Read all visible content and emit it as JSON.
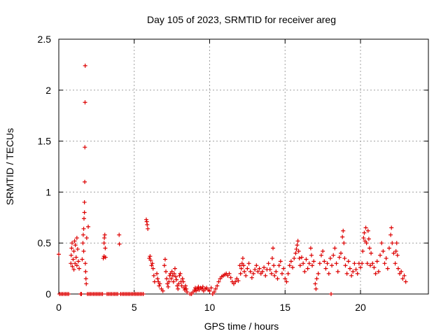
{
  "chart_data": {
    "type": "scatter",
    "title": "Day 105 of 2023, SRMTID for receiver areg",
    "xlabel": "GPS time / hours",
    "ylabel": "SRMTID / TECUs",
    "xlim": [
      0,
      24.5
    ],
    "ylim": [
      0,
      2.5
    ],
    "xticks": [
      0,
      5,
      10,
      15,
      20
    ],
    "xtick_labels": [
      "0",
      "5",
      "10",
      "15",
      "20"
    ],
    "yticks": [
      0,
      0.5,
      1,
      1.5,
      2,
      2.5
    ],
    "ytick_labels": [
      "0",
      "0.5",
      "1",
      "1.5",
      "2",
      "2.5"
    ],
    "grid": true,
    "marker": "+",
    "color": "#dd0000",
    "series": [
      {
        "name": "SRMTID",
        "points": [
          [
            0.0,
            0.39
          ],
          [
            0.05,
            0.0
          ],
          [
            0.15,
            0.0
          ],
          [
            0.25,
            0.0
          ],
          [
            0.35,
            0.0
          ],
          [
            0.45,
            0.0
          ],
          [
            0.55,
            0.0
          ],
          [
            0.65,
            0.0
          ],
          [
            0.8,
            0.3
          ],
          [
            0.82,
            0.38
          ],
          [
            0.85,
            0.45
          ],
          [
            0.88,
            0.5
          ],
          [
            0.9,
            0.27
          ],
          [
            0.95,
            0.34
          ],
          [
            1.0,
            0.42
          ],
          [
            1.0,
            0.24
          ],
          [
            1.05,
            0.52
          ],
          [
            1.08,
            0.3
          ],
          [
            1.1,
            0.48
          ],
          [
            1.15,
            0.36
          ],
          [
            1.2,
            0.55
          ],
          [
            1.2,
            0.28
          ],
          [
            1.25,
            0.44
          ],
          [
            1.3,
            0.32
          ],
          [
            1.35,
            0.25
          ],
          [
            1.45,
            0.0
          ],
          [
            1.5,
            0.0
          ],
          [
            1.55,
            0.34
          ],
          [
            1.6,
            0.5
          ],
          [
            1.62,
            0.58
          ],
          [
            1.65,
            0.64
          ],
          [
            1.65,
            0.42
          ],
          [
            1.67,
            0.74
          ],
          [
            1.7,
            0.8
          ],
          [
            1.7,
            0.9
          ],
          [
            1.72,
            1.1
          ],
          [
            1.73,
            1.44
          ],
          [
            1.74,
            1.88
          ],
          [
            1.75,
            2.24
          ],
          [
            1.76,
            0.3
          ],
          [
            1.78,
            0.22
          ],
          [
            1.8,
            0.15
          ],
          [
            1.82,
            0.1
          ],
          [
            1.85,
            0.55
          ],
          [
            1.95,
            0.66
          ],
          [
            1.9,
            0.0
          ],
          [
            2.0,
            0.0
          ],
          [
            2.1,
            0.0
          ],
          [
            2.2,
            0.0
          ],
          [
            2.3,
            0.0
          ],
          [
            2.4,
            0.0
          ],
          [
            2.5,
            0.0
          ],
          [
            2.6,
            0.0
          ],
          [
            2.7,
            0.0
          ],
          [
            2.8,
            0.0
          ],
          [
            2.9,
            0.0
          ],
          [
            2.95,
            0.35
          ],
          [
            3.0,
            0.37
          ],
          [
            3.0,
            0.5
          ],
          [
            3.02,
            0.55
          ],
          [
            3.05,
            0.58
          ],
          [
            3.08,
            0.45
          ],
          [
            3.1,
            0.36
          ],
          [
            3.2,
            0.0
          ],
          [
            3.3,
            0.0
          ],
          [
            3.4,
            0.0
          ],
          [
            3.5,
            0.0
          ],
          [
            3.6,
            0.0
          ],
          [
            3.7,
            0.0
          ],
          [
            3.8,
            0.0
          ],
          [
            3.9,
            0.0
          ],
          [
            4.0,
            0.58
          ],
          [
            4.02,
            0.49
          ],
          [
            4.1,
            0.0
          ],
          [
            4.2,
            0.0
          ],
          [
            4.3,
            0.0
          ],
          [
            4.4,
            0.0
          ],
          [
            4.5,
            0.0
          ],
          [
            4.6,
            0.0
          ],
          [
            4.7,
            0.0
          ],
          [
            4.8,
            0.0
          ],
          [
            4.9,
            0.0
          ],
          [
            5.0,
            0.0
          ],
          [
            5.1,
            0.0
          ],
          [
            5.2,
            0.0
          ],
          [
            5.3,
            0.0
          ],
          [
            5.4,
            0.0
          ],
          [
            5.5,
            0.0
          ],
          [
            5.6,
            0.0
          ],
          [
            5.8,
            0.73
          ],
          [
            5.83,
            0.71
          ],
          [
            5.86,
            0.68
          ],
          [
            5.9,
            0.64
          ],
          [
            6.0,
            0.35
          ],
          [
            6.05,
            0.37
          ],
          [
            6.1,
            0.33
          ],
          [
            6.15,
            0.28
          ],
          [
            6.2,
            0.3
          ],
          [
            6.25,
            0.25
          ],
          [
            6.3,
            0.18
          ],
          [
            6.35,
            0.12
          ],
          [
            6.5,
            0.2
          ],
          [
            6.55,
            0.15
          ],
          [
            6.6,
            0.12
          ],
          [
            6.65,
            0.08
          ],
          [
            6.7,
            0.1
          ],
          [
            6.8,
            0.05
          ],
          [
            6.9,
            0.03
          ],
          [
            7.0,
            0.28
          ],
          [
            7.05,
            0.34
          ],
          [
            7.1,
            0.22
          ],
          [
            7.15,
            0.15
          ],
          [
            7.2,
            0.1
          ],
          [
            7.25,
            0.07
          ],
          [
            7.3,
            0.12
          ],
          [
            7.35,
            0.18
          ],
          [
            7.4,
            0.2
          ],
          [
            7.45,
            0.15
          ],
          [
            7.5,
            0.22
          ],
          [
            7.55,
            0.18
          ],
          [
            7.6,
            0.12
          ],
          [
            7.65,
            0.2
          ],
          [
            7.7,
            0.25
          ],
          [
            7.75,
            0.17
          ],
          [
            7.8,
            0.14
          ],
          [
            7.85,
            0.08
          ],
          [
            7.9,
            0.05
          ],
          [
            7.95,
            0.1
          ],
          [
            8.0,
            0.18
          ],
          [
            8.05,
            0.2
          ],
          [
            8.1,
            0.12
          ],
          [
            8.15,
            0.08
          ],
          [
            8.2,
            0.15
          ],
          [
            8.25,
            0.12
          ],
          [
            8.3,
            0.06
          ],
          [
            8.35,
            0.04
          ],
          [
            8.4,
            0.08
          ],
          [
            8.45,
            0.05
          ],
          [
            8.5,
            0.02
          ],
          [
            8.7,
            0.0
          ],
          [
            8.8,
            0.0
          ],
          [
            8.9,
            0.02
          ],
          [
            9.0,
            0.04
          ],
          [
            9.05,
            0.06
          ],
          [
            9.1,
            0.03
          ],
          [
            9.2,
            0.05
          ],
          [
            9.25,
            0.07
          ],
          [
            9.3,
            0.04
          ],
          [
            9.4,
            0.06
          ],
          [
            9.5,
            0.05
          ],
          [
            9.55,
            0.07
          ],
          [
            9.6,
            0.03
          ],
          [
            9.7,
            0.05
          ],
          [
            9.8,
            0.06
          ],
          [
            9.9,
            0.04
          ],
          [
            10.0,
            0.03
          ],
          [
            10.1,
            0.06
          ],
          [
            10.2,
            0.0
          ],
          [
            10.3,
            0.02
          ],
          [
            10.4,
            0.05
          ],
          [
            10.5,
            0.08
          ],
          [
            10.6,
            0.12
          ],
          [
            10.7,
            0.15
          ],
          [
            10.8,
            0.17
          ],
          [
            10.9,
            0.18
          ],
          [
            11.0,
            0.19
          ],
          [
            11.1,
            0.2
          ],
          [
            11.2,
            0.18
          ],
          [
            11.3,
            0.2
          ],
          [
            11.4,
            0.16
          ],
          [
            11.5,
            0.12
          ],
          [
            11.6,
            0.1
          ],
          [
            11.7,
            0.12
          ],
          [
            11.8,
            0.15
          ],
          [
            11.9,
            0.13
          ],
          [
            12.0,
            0.28
          ],
          [
            12.05,
            0.2
          ],
          [
            12.1,
            0.25
          ],
          [
            12.15,
            0.3
          ],
          [
            12.2,
            0.35
          ],
          [
            12.25,
            0.28
          ],
          [
            12.3,
            0.22
          ],
          [
            12.4,
            0.18
          ],
          [
            12.5,
            0.25
          ],
          [
            12.6,
            0.3
          ],
          [
            12.7,
            0.22
          ],
          [
            12.8,
            0.16
          ],
          [
            12.9,
            0.2
          ],
          [
            13.0,
            0.24
          ],
          [
            13.1,
            0.28
          ],
          [
            13.2,
            0.22
          ],
          [
            13.3,
            0.25
          ],
          [
            13.4,
            0.2
          ],
          [
            13.5,
            0.22
          ],
          [
            13.6,
            0.26
          ],
          [
            13.7,
            0.18
          ],
          [
            13.8,
            0.24
          ],
          [
            13.9,
            0.3
          ],
          [
            14.0,
            0.24
          ],
          [
            14.1,
            0.2
          ],
          [
            14.15,
            0.35
          ],
          [
            14.2,
            0.45
          ],
          [
            14.25,
            0.28
          ],
          [
            14.3,
            0.18
          ],
          [
            14.4,
            0.22
          ],
          [
            14.5,
            0.15
          ],
          [
            14.6,
            0.28
          ],
          [
            14.7,
            0.32
          ],
          [
            14.8,
            0.2
          ],
          [
            14.9,
            0.25
          ],
          [
            15.0,
            0.15
          ],
          [
            15.1,
            0.12
          ],
          [
            15.2,
            0.2
          ],
          [
            15.3,
            0.28
          ],
          [
            15.4,
            0.32
          ],
          [
            15.5,
            0.26
          ],
          [
            15.6,
            0.35
          ],
          [
            15.7,
            0.4
          ],
          [
            15.75,
            0.44
          ],
          [
            15.8,
            0.48
          ],
          [
            15.85,
            0.52
          ],
          [
            15.9,
            0.42
          ],
          [
            15.95,
            0.35
          ],
          [
            16.0,
            0.28
          ],
          [
            16.1,
            0.36
          ],
          [
            16.2,
            0.3
          ],
          [
            16.3,
            0.22
          ],
          [
            16.4,
            0.34
          ],
          [
            16.5,
            0.25
          ],
          [
            16.6,
            0.3
          ],
          [
            16.7,
            0.45
          ],
          [
            16.75,
            0.38
          ],
          [
            16.8,
            0.28
          ],
          [
            16.9,
            0.32
          ],
          [
            17.0,
            0.1
          ],
          [
            17.05,
            0.05
          ],
          [
            17.1,
            0.15
          ],
          [
            17.2,
            0.2
          ],
          [
            17.3,
            0.3
          ],
          [
            17.4,
            0.38
          ],
          [
            17.5,
            0.42
          ],
          [
            17.6,
            0.32
          ],
          [
            17.7,
            0.25
          ],
          [
            17.8,
            0.3
          ],
          [
            17.9,
            0.2
          ],
          [
            18.0,
            0.35
          ],
          [
            18.05,
            0.0
          ],
          [
            18.1,
            0.28
          ],
          [
            18.2,
            0.38
          ],
          [
            18.3,
            0.45
          ],
          [
            18.4,
            0.3
          ],
          [
            18.5,
            0.22
          ],
          [
            18.6,
            0.36
          ],
          [
            18.7,
            0.4
          ],
          [
            18.8,
            0.56
          ],
          [
            18.85,
            0.62
          ],
          [
            18.9,
            0.5
          ],
          [
            18.95,
            0.35
          ],
          [
            19.0,
            0.28
          ],
          [
            19.1,
            0.2
          ],
          [
            19.2,
            0.32
          ],
          [
            19.3,
            0.25
          ],
          [
            19.4,
            0.18
          ],
          [
            19.5,
            0.22
          ],
          [
            19.6,
            0.3
          ],
          [
            19.7,
            0.24
          ],
          [
            19.8,
            0.2
          ],
          [
            19.9,
            0.3
          ],
          [
            20.0,
            0.26
          ],
          [
            20.1,
            0.3
          ],
          [
            20.15,
            0.42
          ],
          [
            20.2,
            0.55
          ],
          [
            20.25,
            0.6
          ],
          [
            20.3,
            0.52
          ],
          [
            20.35,
            0.65
          ],
          [
            20.4,
            0.5
          ],
          [
            20.45,
            0.3
          ],
          [
            20.5,
            0.62
          ],
          [
            20.55,
            0.54
          ],
          [
            20.6,
            0.45
          ],
          [
            20.65,
            0.28
          ],
          [
            20.7,
            0.4
          ],
          [
            20.8,
            0.3
          ],
          [
            20.9,
            0.26
          ],
          [
            21.0,
            0.2
          ],
          [
            21.1,
            0.32
          ],
          [
            21.2,
            0.22
          ],
          [
            21.3,
            0.38
          ],
          [
            21.4,
            0.5
          ],
          [
            21.5,
            0.42
          ],
          [
            21.6,
            0.3
          ],
          [
            21.7,
            0.35
          ],
          [
            21.8,
            0.25
          ],
          [
            21.9,
            0.45
          ],
          [
            22.0,
            0.58
          ],
          [
            22.05,
            0.65
          ],
          [
            22.1,
            0.5
          ],
          [
            22.2,
            0.4
          ],
          [
            22.3,
            0.3
          ],
          [
            22.35,
            0.42
          ],
          [
            22.4,
            0.5
          ],
          [
            22.45,
            0.38
          ],
          [
            22.5,
            0.25
          ],
          [
            22.6,
            0.2
          ],
          [
            22.7,
            0.22
          ],
          [
            22.8,
            0.15
          ],
          [
            22.9,
            0.18
          ],
          [
            23.0,
            0.12
          ]
        ]
      }
    ]
  }
}
